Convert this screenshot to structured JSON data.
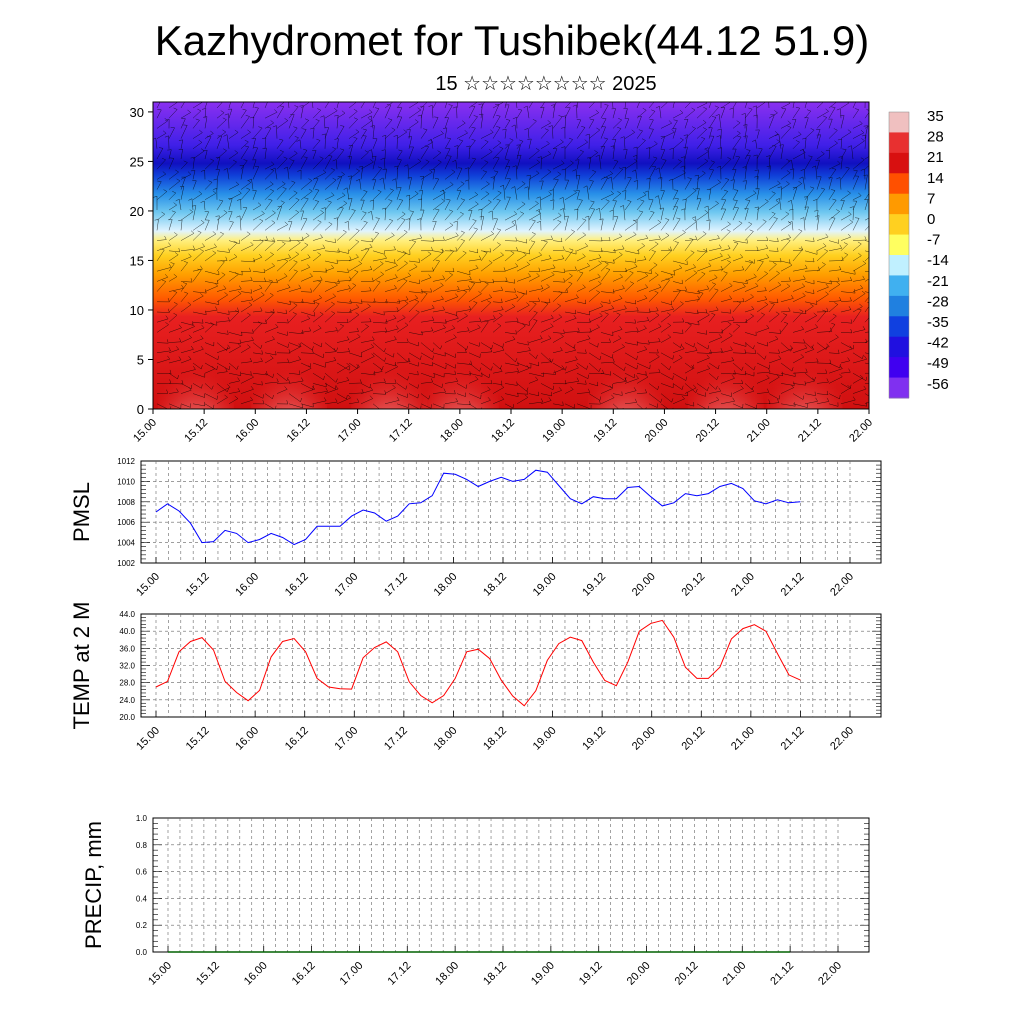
{
  "header": {
    "title": "Kazhydromet for Tushibek(44.12 51.9)",
    "subtitle": "15 ☆☆☆☆☆☆☆☆ 2025"
  },
  "chart_data": [
    {
      "type": "heatmap",
      "panel": "cross-section",
      "x_ticks": [
        "15.00",
        "15.12",
        "16.00",
        "16.12",
        "17.00",
        "17.12",
        "18.00",
        "18.12",
        "19.00",
        "19.12",
        "20.00",
        "20.12",
        "21.00",
        "21.12",
        "22.00"
      ],
      "ylim": [
        0,
        31
      ],
      "y_ticks": [
        0,
        5,
        10,
        15,
        20,
        25,
        30
      ],
      "colorbar": {
        "labels": [
          "35",
          "28",
          "21",
          "14",
          "7",
          "0",
          "-7",
          "-14",
          "-21",
          "-28",
          "-35",
          "-42",
          "-49",
          "-56"
        ],
        "colors": [
          "#f0c0c0",
          "#e83030",
          "#d81010",
          "#ff5000",
          "#ff9a00",
          "#ffd020",
          "#ffff60",
          "#c0f0ff",
          "#40b0f0",
          "#2080e0",
          "#1040e0",
          "#2010e0",
          "#4000f0",
          "#8030f0"
        ]
      },
      "overlay": "wind barbs",
      "grid": false
    },
    {
      "type": "line",
      "panel": "pmsl",
      "ylabel": "PMSL",
      "ylim": [
        1002,
        1012
      ],
      "y_ticks": [
        "1002",
        "1004",
        "1006",
        "1008",
        "1010",
        "1012"
      ],
      "x_ticks": [
        "15.00",
        "15.12",
        "16.00",
        "16.12",
        "17.00",
        "17.12",
        "18.00",
        "18.12",
        "19.00",
        "19.12",
        "20.00",
        "20.12",
        "21.00",
        "21.12",
        "22.00"
      ],
      "series": [
        {
          "color": "#0000ff",
          "values": [
            1007.0,
            1007.8,
            1007.1,
            1005.9,
            1004.0,
            1004.1,
            1005.2,
            1004.9,
            1004.0,
            1004.3,
            1004.9,
            1004.5,
            1003.8,
            1004.3,
            1005.6,
            1005.6,
            1005.6,
            1006.6,
            1007.2,
            1006.9,
            1006.1,
            1006.6,
            1007.8,
            1007.9,
            1008.6,
            1010.8,
            1010.7,
            1010.2,
            1009.5,
            1010.0,
            1010.4,
            1010.0,
            1010.2,
            1011.1,
            1010.9,
            1009.6,
            1008.3,
            1007.8,
            1008.5,
            1008.3,
            1008.3,
            1009.4,
            1009.5,
            1008.5,
            1007.6,
            1007.9,
            1008.8,
            1008.6,
            1008.8,
            1009.5,
            1009.8,
            1009.3,
            1008.1,
            1007.8,
            1008.2,
            1007.9,
            1008.0
          ]
        }
      ],
      "grid": true
    },
    {
      "type": "line",
      "panel": "temperature",
      "ylabel": "TEMP at 2 M",
      "ylim": [
        20,
        44
      ],
      "y_ticks": [
        "20.0",
        "24.0",
        "28.0",
        "32.0",
        "36.0",
        "40.0",
        "44.0"
      ],
      "x_ticks": [
        "15.00",
        "15.12",
        "16.00",
        "16.12",
        "17.00",
        "17.12",
        "18.00",
        "18.12",
        "19.00",
        "19.12",
        "20.00",
        "20.12",
        "21.00",
        "21.12",
        "22.00"
      ],
      "series": [
        {
          "color": "#ff0000",
          "values": [
            27.0,
            28.3,
            35.2,
            37.6,
            38.5,
            35.6,
            28.3,
            25.7,
            23.8,
            26.2,
            34.0,
            37.6,
            38.3,
            35.2,
            29.0,
            27.0,
            26.6,
            26.5,
            33.8,
            36.2,
            37.5,
            35.2,
            28.2,
            25.0,
            23.3,
            25.0,
            29.0,
            35.2,
            35.8,
            33.6,
            28.6,
            24.9,
            22.6,
            26.1,
            33.2,
            37.1,
            38.6,
            37.8,
            32.8,
            28.5,
            27.3,
            32.8,
            40.0,
            41.8,
            42.5,
            38.6,
            31.6,
            29.0,
            29.0,
            31.6,
            38.2,
            40.6,
            41.5,
            40.0,
            34.8,
            29.8,
            28.6
          ]
        }
      ],
      "grid": true
    },
    {
      "type": "line",
      "panel": "precip",
      "ylabel": "PRECIP, mm",
      "ylim": [
        0,
        1
      ],
      "y_ticks": [
        "0.0",
        "0.2",
        "0.4",
        "0.6",
        "0.8",
        "1.0"
      ],
      "x_ticks": [
        "15.00",
        "15.12",
        "16.00",
        "16.12",
        "17.00",
        "17.12",
        "18.00",
        "18.12",
        "19.00",
        "19.12",
        "20.00",
        "20.12",
        "21.00",
        "21.12",
        "22.00"
      ],
      "series": [
        {
          "color": "#006000",
          "values": [
            0,
            0,
            0,
            0,
            0,
            0,
            0,
            0,
            0,
            0,
            0,
            0,
            0,
            0,
            0,
            0,
            0,
            0,
            0,
            0,
            0,
            0,
            0,
            0,
            0,
            0,
            0,
            0,
            0,
            0,
            0,
            0,
            0,
            0,
            0,
            0,
            0,
            0,
            0,
            0,
            0,
            0,
            0,
            0,
            0,
            0,
            0,
            0,
            0,
            0,
            0,
            0,
            0,
            0,
            0,
            0,
            0
          ]
        }
      ],
      "grid": true
    }
  ]
}
